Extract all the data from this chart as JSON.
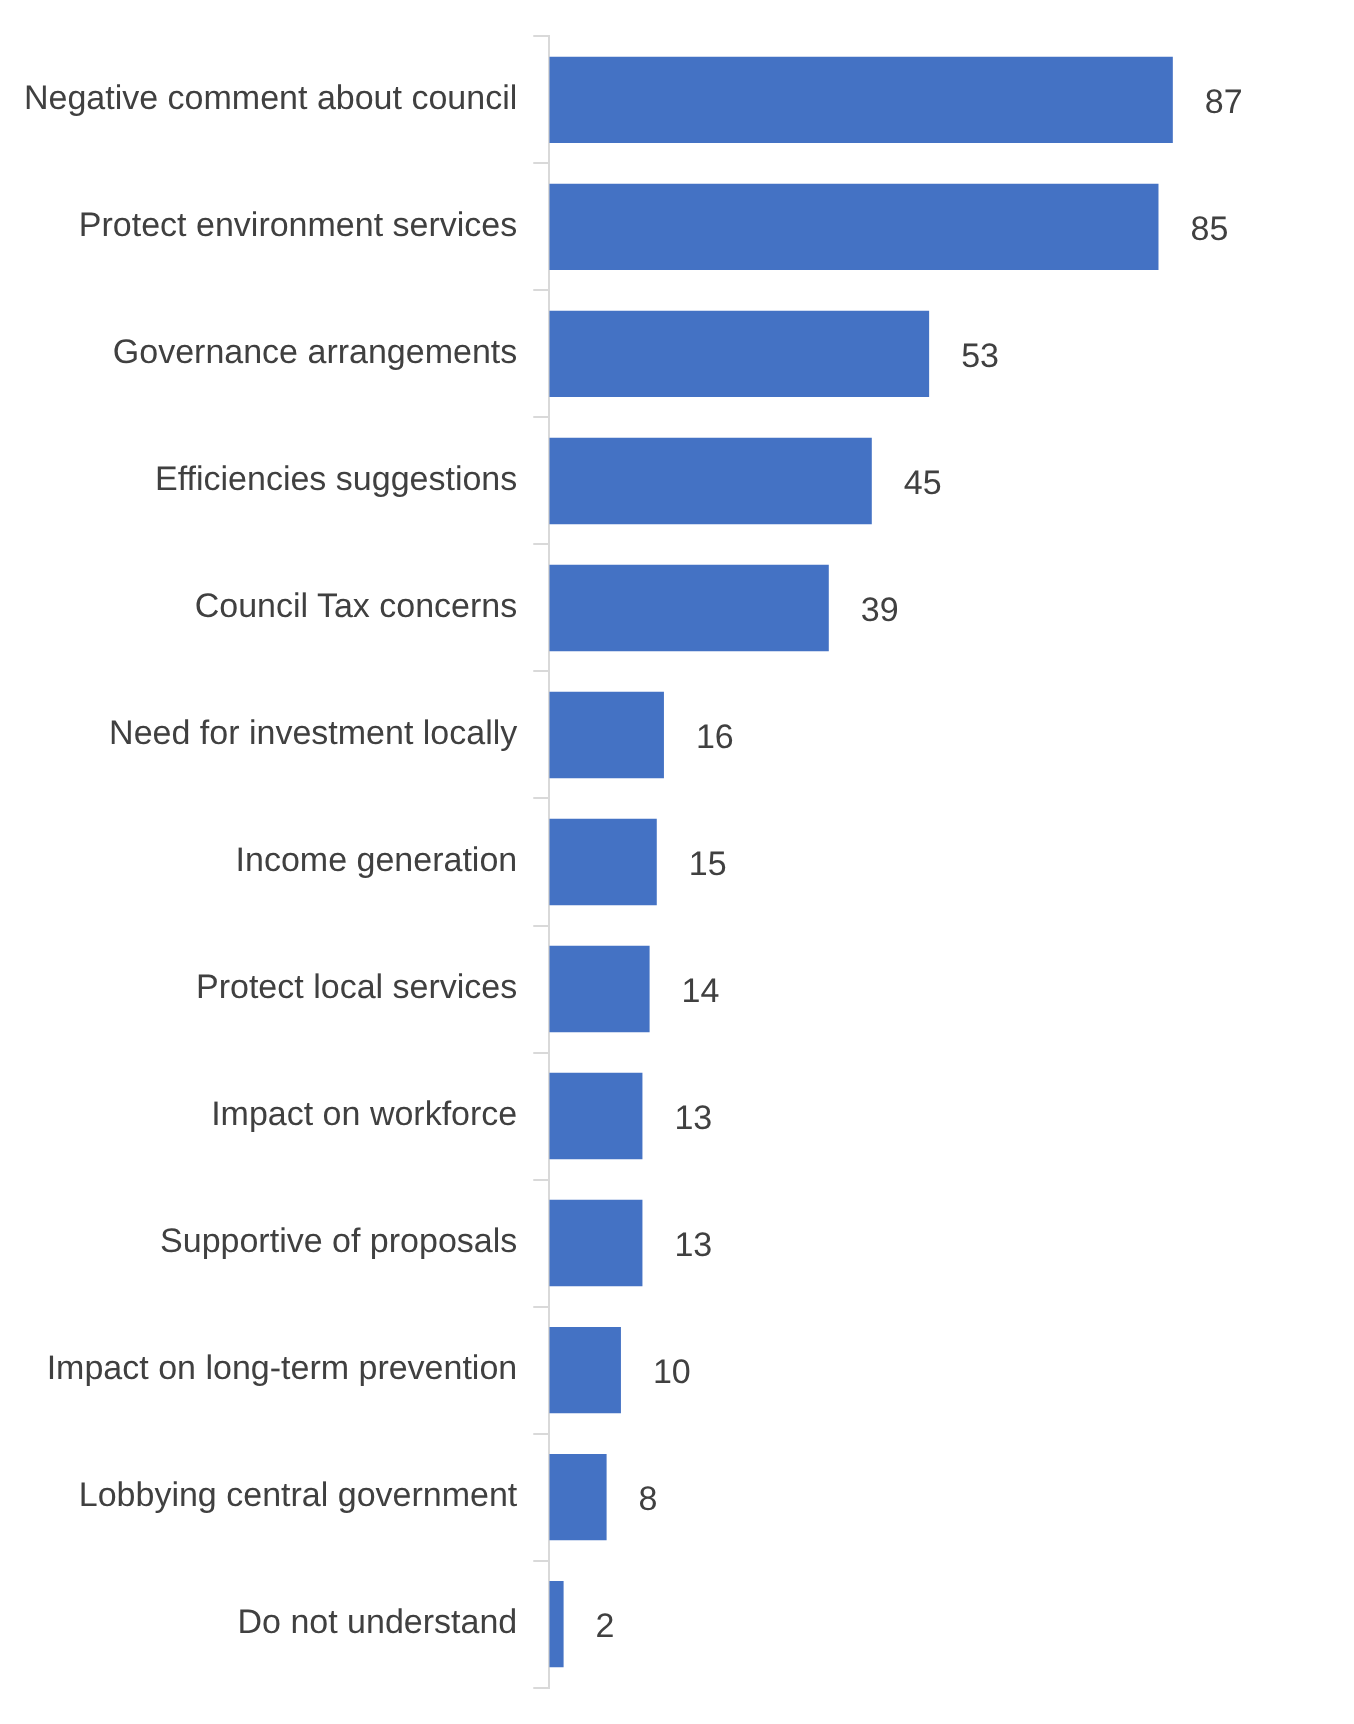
{
  "chart_data": {
    "type": "bar",
    "orientation": "horizontal",
    "categories": [
      "Negative comment about council",
      "Protect environment services",
      "Governance arrangements",
      "Efficiencies suggestions",
      "Council Tax concerns",
      "Need for investment locally",
      "Income generation",
      "Protect local services",
      "Impact on workforce",
      "Supportive of proposals",
      "Impact on long-term prevention",
      "Lobbying central government",
      "Do not understand"
    ],
    "values": [
      87,
      85,
      53,
      45,
      39,
      16,
      15,
      14,
      13,
      13,
      10,
      8,
      2
    ],
    "color": "#4472c4",
    "data_labels": true,
    "tick_labels": "y",
    "grid": false,
    "legend": false
  }
}
